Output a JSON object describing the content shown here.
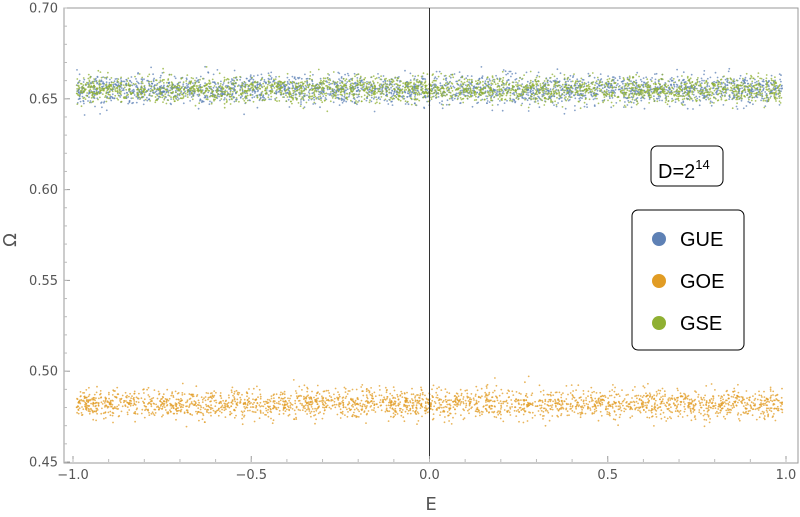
{
  "chart_data": {
    "type": "scatter",
    "xlabel": "E",
    "ylabel": "Ω",
    "xlim": [
      -1.0,
      1.0
    ],
    "ylim": [
      0.45,
      0.7
    ],
    "x_ticks": [
      "-1.0",
      "-0.5",
      "0.0",
      "0.5",
      "1.0"
    ],
    "x_tick_values": [
      -1.0,
      -0.5,
      0.0,
      0.5,
      1.0
    ],
    "y_ticks": [
      "0.45",
      "0.50",
      "0.55",
      "0.60",
      "0.65",
      "0.70"
    ],
    "y_tick_values": [
      0.45,
      0.5,
      0.55,
      0.6,
      0.65,
      0.7
    ],
    "reference_line_x": 0.0,
    "annotation": {
      "base": "D=2",
      "exponent": "14"
    },
    "legend_position": "right",
    "series": [
      {
        "name": "GUE",
        "color": "#5E81B5",
        "y_center": 0.655,
        "y_spread": 0.004,
        "x_range": [
          -0.99,
          0.99
        ]
      },
      {
        "name": "GOE",
        "color": "#E19C24",
        "y_center": 0.482,
        "y_spread": 0.004,
        "x_range": [
          -0.99,
          0.99
        ]
      },
      {
        "name": "GSE",
        "color": "#8FB032",
        "y_center": 0.655,
        "y_spread": 0.0035,
        "x_range": [
          -0.99,
          0.99
        ]
      }
    ]
  }
}
